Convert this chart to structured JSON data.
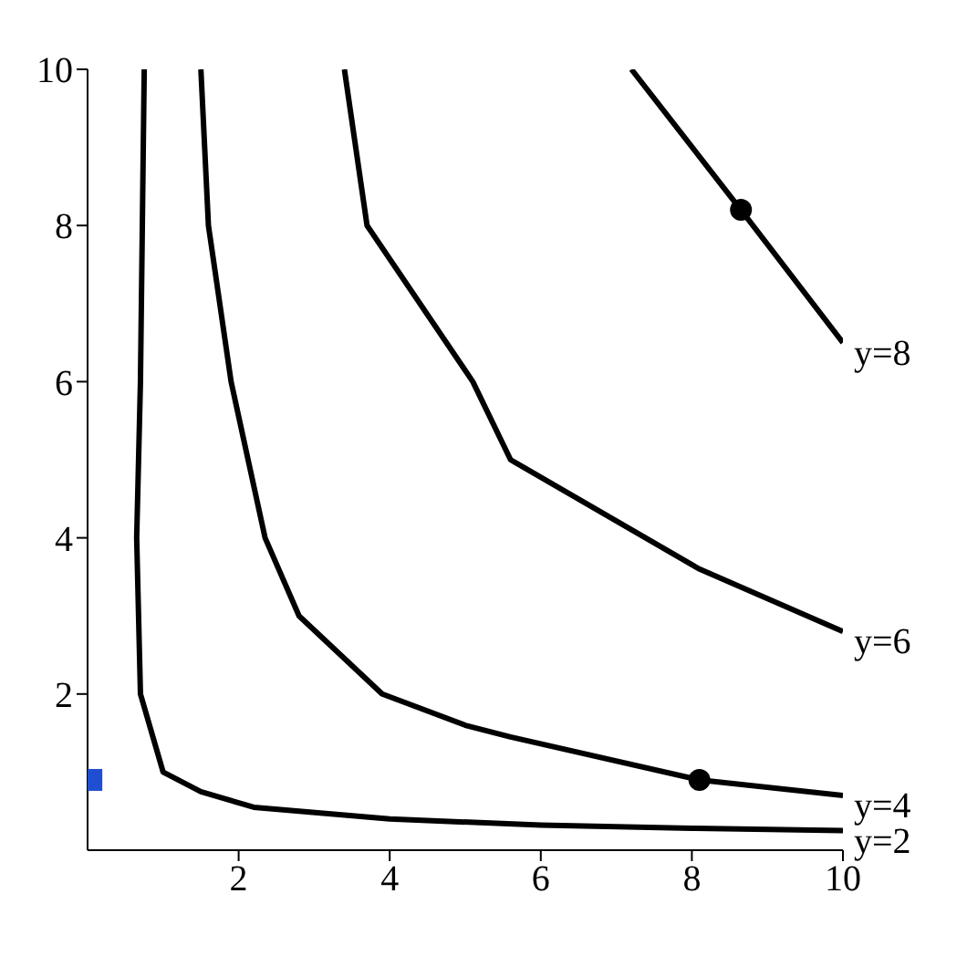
{
  "chart_data": {
    "type": "line",
    "xlim": [
      0,
      10
    ],
    "ylim": [
      0,
      10
    ],
    "xticks": [
      2,
      4,
      6,
      8,
      10
    ],
    "yticks": [
      2,
      4,
      6,
      8,
      10
    ],
    "grid": false,
    "legend": false,
    "line_style": "solid",
    "marker": "none",
    "series": [
      {
        "name": "y=2",
        "color": "#000000",
        "x": [
          0.75,
          0.7,
          0.65,
          0.7,
          1.0,
          1.5,
          2.2,
          4,
          6,
          8,
          10
        ],
        "values": [
          10,
          6,
          4,
          2,
          1.0,
          0.75,
          0.55,
          0.4,
          0.32,
          0.28,
          0.25
        ]
      },
      {
        "name": "y=4",
        "color": "#000000",
        "x": [
          1.5,
          1.6,
          1.9,
          2.35,
          2.8,
          3.9,
          5,
          5.6,
          8.1,
          10
        ],
        "values": [
          10,
          8,
          6,
          4,
          3,
          2,
          1.6,
          1.45,
          0.9,
          0.7
        ]
      },
      {
        "name": "y=6",
        "color": "#000000",
        "x": [
          3.4,
          3.7,
          5.1,
          5.6,
          8.1,
          10
        ],
        "values": [
          10,
          8,
          6,
          5,
          3.6,
          2.8
        ]
      },
      {
        "name": "y=8",
        "color": "#000000",
        "x": [
          7.2,
          8.65,
          10
        ],
        "values": [
          10,
          8.2,
          6.5
        ]
      },
      {
        "type": "scatter",
        "color": "#000000",
        "marker": "circle",
        "x": [
          8.65,
          8.1
        ],
        "values": [
          8.2,
          0.9
        ]
      },
      {
        "type": "scatter",
        "color": "#1f4fd0",
        "marker": "square",
        "x": [
          0.05
        ],
        "values": [
          0.9
        ]
      }
    ]
  }
}
